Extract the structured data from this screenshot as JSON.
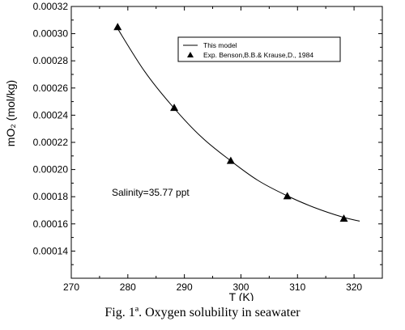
{
  "chart_data": {
    "type": "line",
    "xlabel": "T (K)",
    "ylabel": "mO₂ (mol/kg)",
    "xlim": [
      270,
      325
    ],
    "ylim": [
      0.00012,
      0.00032
    ],
    "x_ticks": [
      270,
      280,
      290,
      300,
      310,
      320
    ],
    "y_ticks": [
      "0.00014",
      "0.00016",
      "0.00018",
      "0.00020",
      "0.00022",
      "0.00024",
      "0.00026",
      "0.00028",
      "0.00030",
      "0.00032"
    ],
    "grid": false,
    "legend_position": "top-right",
    "series": [
      {
        "name": "This model",
        "style": "line",
        "x": [
          278,
          283,
          288,
          293,
          298,
          303,
          308,
          313,
          318,
          321
        ],
        "y": [
          0.000305,
          0.000272,
          0.000246,
          0.000224,
          0.000207,
          0.000192,
          0.000181,
          0.000172,
          0.000165,
          0.000162
        ]
      },
      {
        "name": "Exp. Benson,B.B.& Krause,D., 1984",
        "style": "markers",
        "marker": "triangle",
        "x": [
          278.2,
          288.2,
          298.2,
          308.2,
          318.2
        ],
        "y": [
          0.000305,
          0.0002455,
          0.0002065,
          0.0001805,
          0.000164
        ]
      }
    ],
    "annotation": "Salinity=35.77 ppt"
  },
  "caption": "Fig. 1ª. Oxygen solubility in seawater"
}
